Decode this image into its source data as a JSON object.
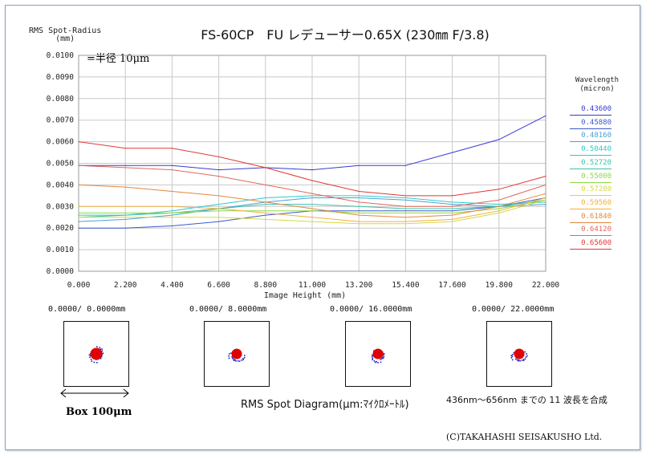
{
  "header": {
    "title": "FS-60CP　FU レデューサー0.65X (230㎜ F/3.8)",
    "ylabel_line1": "RMS Spot-Radius",
    "ylabel_line2": "(mm)",
    "note": "=半径 10μm"
  },
  "legend": {
    "title_line1": "Wavelength",
    "title_line2": "(micron)"
  },
  "chart_data": {
    "type": "line",
    "xlabel": "Image Height (mm)",
    "ylabel": "RMS Spot-Radius (mm)",
    "xlim": [
      0,
      22
    ],
    "ylim": [
      0,
      0.01
    ],
    "x_ticks": [
      "0.000",
      "2.200",
      "4.400",
      "6.600",
      "8.800",
      "11.000",
      "13.200",
      "15.400",
      "17.600",
      "19.800",
      "22.000"
    ],
    "y_ticks": [
      "0.0000",
      "0.0010",
      "0.0020",
      "0.0030",
      "0.0040",
      "0.0050",
      "0.0060",
      "0.0070",
      "0.0080",
      "0.0090",
      "0.0100"
    ],
    "grid": true,
    "legend_position": "right",
    "x": [
      0,
      2.2,
      4.4,
      6.6,
      8.8,
      11,
      13.2,
      15.4,
      17.6,
      19.8,
      22
    ],
    "series": [
      {
        "name": "0.43600",
        "color": "#3a3ad0",
        "values": [
          0.0049,
          0.0049,
          0.0049,
          0.0047,
          0.0048,
          0.0047,
          0.0049,
          0.0049,
          0.0055,
          0.0061,
          0.0072
        ]
      },
      {
        "name": "0.45880",
        "color": "#3a5ac8",
        "values": [
          0.002,
          0.002,
          0.0021,
          0.0023,
          0.0026,
          0.0028,
          0.0028,
          0.0028,
          0.0028,
          0.003,
          0.0034
        ]
      },
      {
        "name": "0.48160",
        "color": "#4aa0d8",
        "values": [
          0.0023,
          0.0024,
          0.0026,
          0.0029,
          0.0032,
          0.0034,
          0.0034,
          0.0033,
          0.0031,
          0.003,
          0.0031
        ]
      },
      {
        "name": "0.50440",
        "color": "#30c8c8",
        "values": [
          0.0025,
          0.0026,
          0.0028,
          0.0031,
          0.0034,
          0.0035,
          0.0035,
          0.0034,
          0.0032,
          0.0031,
          0.0032
        ]
      },
      {
        "name": "0.52720",
        "color": "#40c0a8",
        "values": [
          0.0026,
          0.0026,
          0.0027,
          0.0029,
          0.0031,
          0.0031,
          0.003,
          0.0029,
          0.0029,
          0.003,
          0.0033
        ]
      },
      {
        "name": "0.55000",
        "color": "#90d840",
        "values": [
          0.0027,
          0.0027,
          0.0027,
          0.0028,
          0.0028,
          0.0028,
          0.0027,
          0.0027,
          0.0027,
          0.0029,
          0.0033
        ]
      },
      {
        "name": "0.57280",
        "color": "#d8d840",
        "values": [
          0.0025,
          0.0025,
          0.0025,
          0.0025,
          0.0024,
          0.0023,
          0.0022,
          0.0022,
          0.0023,
          0.0027,
          0.0033
        ]
      },
      {
        "name": "0.59560",
        "color": "#f0b040",
        "values": [
          0.003,
          0.003,
          0.003,
          0.0029,
          0.0027,
          0.0025,
          0.0023,
          0.0023,
          0.0024,
          0.0028,
          0.0034
        ]
      },
      {
        "name": "0.61840",
        "color": "#e08840",
        "values": [
          0.004,
          0.0039,
          0.0037,
          0.0035,
          0.0032,
          0.0029,
          0.0026,
          0.0025,
          0.0026,
          0.003,
          0.0036
        ]
      },
      {
        "name": "0.64120",
        "color": "#e06858",
        "values": [
          0.0049,
          0.0048,
          0.0047,
          0.0044,
          0.004,
          0.0036,
          0.0032,
          0.003,
          0.003,
          0.0033,
          0.004
        ]
      },
      {
        "name": "0.65600",
        "color": "#e03838",
        "values": [
          0.006,
          0.0057,
          0.0057,
          0.0053,
          0.0048,
          0.0042,
          0.0037,
          0.0035,
          0.0035,
          0.0038,
          0.0044
        ]
      }
    ]
  },
  "spots": [
    {
      "label": "0.0000/   0.0000mm"
    },
    {
      "label": "0.0000/   8.0000mm"
    },
    {
      "label": "0.0000/  16.0000mm"
    },
    {
      "label": "0.0000/  22.0000mm"
    }
  ],
  "footer": {
    "box_label": "Box 100μm",
    "rms_caption": "RMS Spot Diagram(μm:ﾏｲｸﾛﾒｰﾄﾙ)",
    "wave_caption": "436nm～656nm までの 11 波長を合成",
    "copyright": "(C)TAKAHASHI SEISAKUSHO Ltd."
  },
  "colors": {
    "grid": "#c8c8c8",
    "spot_fill": "#e00000",
    "spot_dots": "#2020c0",
    "arrow": "#000000"
  }
}
